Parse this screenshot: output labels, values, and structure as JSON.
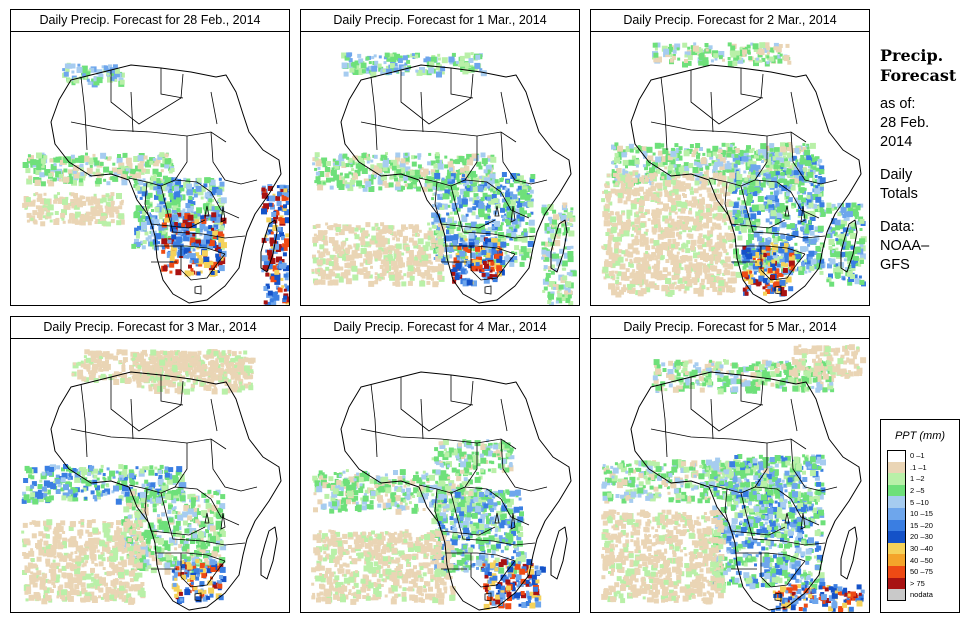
{
  "panels": [
    {
      "title": "Daily Precip. Forecast for  28 Feb., 2014"
    },
    {
      "title": "Daily Precip. Forecast for  1 Mar., 2014"
    },
    {
      "title": "Daily Precip. Forecast for  2 Mar., 2014"
    },
    {
      "title": "Daily Precip. Forecast for  3 Mar., 2014"
    },
    {
      "title": "Daily Precip. Forecast for  4 Mar., 2014"
    },
    {
      "title": "Daily Precip. Forecast for  5 Mar., 2014"
    }
  ],
  "side": {
    "title_1": "Precip.",
    "title_2": "Forecast",
    "asof_1": "as of:",
    "asof_2": "28 Feb.",
    "asof_3": "2014",
    "totals_1": "Daily",
    "totals_2": "Totals",
    "source_1": "Data:",
    "source_2": "NOAA–",
    "source_3": "GFS"
  },
  "legend": {
    "title": "PPT (mm)",
    "items": [
      {
        "label": "0 –1",
        "color": "#ffffff"
      },
      {
        "label": ".1 –1",
        "color": "#ead5b5"
      },
      {
        "label": "1 –2",
        "color": "#b9f0a8"
      },
      {
        "label": "2 –5",
        "color": "#6ee07a"
      },
      {
        "label": "5 –10",
        "color": "#a6ccf0"
      },
      {
        "label": "10 –15",
        "color": "#6ea6ec"
      },
      {
        "label": "15 –20",
        "color": "#3a7ee2"
      },
      {
        "label": "20 –30",
        "color": "#1452c8"
      },
      {
        "label": "30 –40",
        "color": "#f5d25a"
      },
      {
        "label": "40 –50",
        "color": "#f4a42a"
      },
      {
        "label": "50 –75",
        "color": "#ee4a14"
      },
      {
        "label": "> 75",
        "color": "#a81212"
      },
      {
        "label": "nodata",
        "color": "#c9c9c9"
      }
    ]
  }
}
